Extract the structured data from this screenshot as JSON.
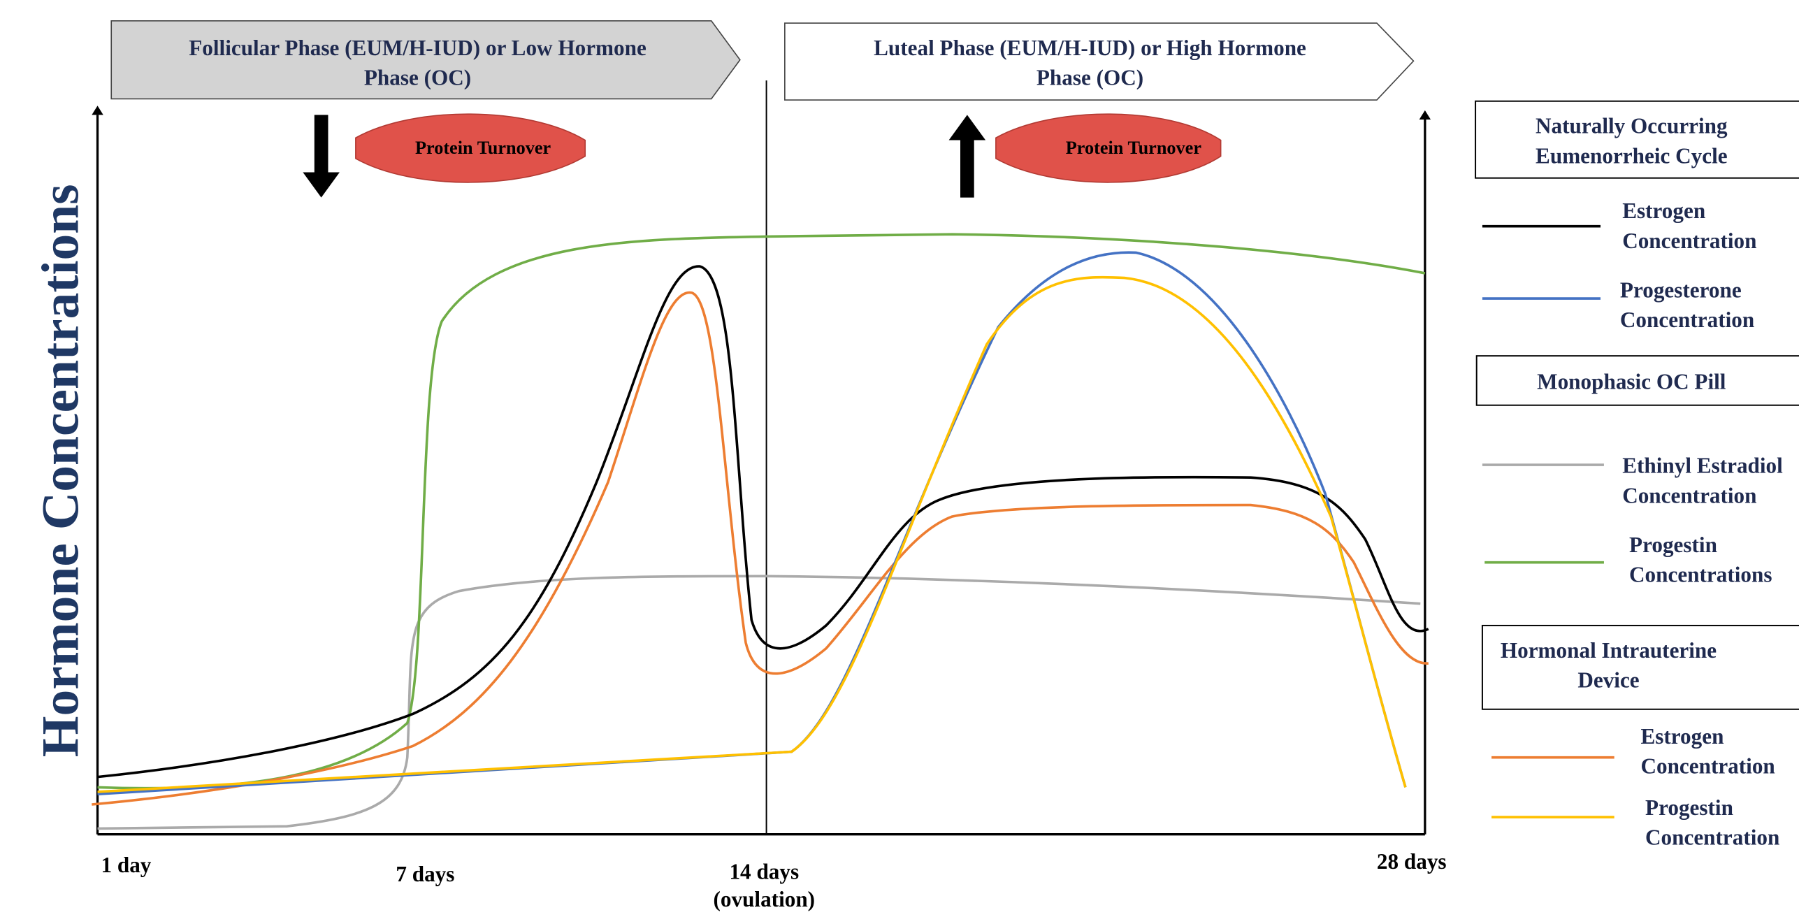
{
  "phases": [
    {
      "label": [
        "Follicular Phase (EUM/H-IUD) or Low Hormone",
        "Phase (OC)"
      ],
      "annotation": "Protein Turnover"
    },
    {
      "label": [
        "Luteal Phase (EUM/H-IUD) or High Hormone",
        "Phase (OC)"
      ],
      "annotation": "Protein Turnover"
    }
  ],
  "y_axis_label": "Hormone Concentrations",
  "x_labels": [
    [
      "1 day"
    ],
    [
      "7 days"
    ],
    [
      "14 days",
      "(ovulation)"
    ],
    [
      "28 days"
    ]
  ],
  "legend": [
    {
      "title": [
        "Naturally Occurring",
        "Eumenorrheic  Cycle"
      ],
      "items": [
        [
          "Estrogen",
          "Concentration"
        ],
        [
          "Progesterone",
          "Concentration"
        ]
      ]
    },
    {
      "title": [
        "Monophasic OC Pill"
      ],
      "items": [
        [
          "Ethinyl Estradiol",
          "Concentration"
        ],
        [
          "Progestin",
          "Concentrations"
        ]
      ]
    },
    {
      "title": [
        "Hormonal Intrauterine",
        "Device"
      ],
      "items": [
        [
          "Estrogen",
          "Concentration"
        ],
        [
          "Progestin",
          "Concentration"
        ]
      ]
    }
  ]
}
